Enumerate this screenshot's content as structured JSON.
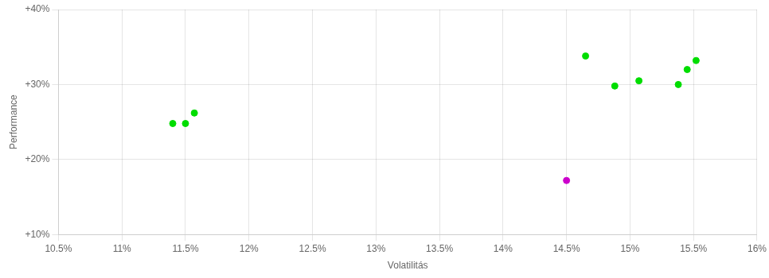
{
  "chart_data": {
    "type": "scatter",
    "xlabel": "Volatilitás",
    "ylabel": "Performance",
    "xlim": [
      10.5,
      16.0
    ],
    "ylim": [
      10.0,
      40.0
    ],
    "xticks": [
      {
        "value": 10.5,
        "label": "10.5%"
      },
      {
        "value": 11.0,
        "label": "11%"
      },
      {
        "value": 11.5,
        "label": "11.5%"
      },
      {
        "value": 12.0,
        "label": "12%"
      },
      {
        "value": 12.5,
        "label": "12.5%"
      },
      {
        "value": 13.0,
        "label": "13%"
      },
      {
        "value": 13.5,
        "label": "13.5%"
      },
      {
        "value": 14.0,
        "label": "14%"
      },
      {
        "value": 14.5,
        "label": "14.5%"
      },
      {
        "value": 15.0,
        "label": "15%"
      },
      {
        "value": 15.5,
        "label": "15.5%"
      },
      {
        "value": 16.0,
        "label": "16%"
      }
    ],
    "yticks": [
      {
        "value": 10.0,
        "label": "+10%"
      },
      {
        "value": 20.0,
        "label": "+20%"
      },
      {
        "value": 30.0,
        "label": "+30%"
      },
      {
        "value": 40.0,
        "label": "+40%"
      }
    ],
    "grid": true,
    "series": [
      {
        "color": "#00dd00",
        "x": [
          11.4,
          11.5,
          11.57,
          14.65,
          14.88,
          15.07,
          15.38,
          15.45,
          15.52
        ],
        "values": [
          24.8,
          24.8,
          26.2,
          33.8,
          29.8,
          30.5,
          30.0,
          32.0,
          33.2
        ]
      },
      {
        "color": "#cc00cc",
        "x": [
          14.5
        ],
        "values": [
          17.2
        ]
      }
    ]
  }
}
